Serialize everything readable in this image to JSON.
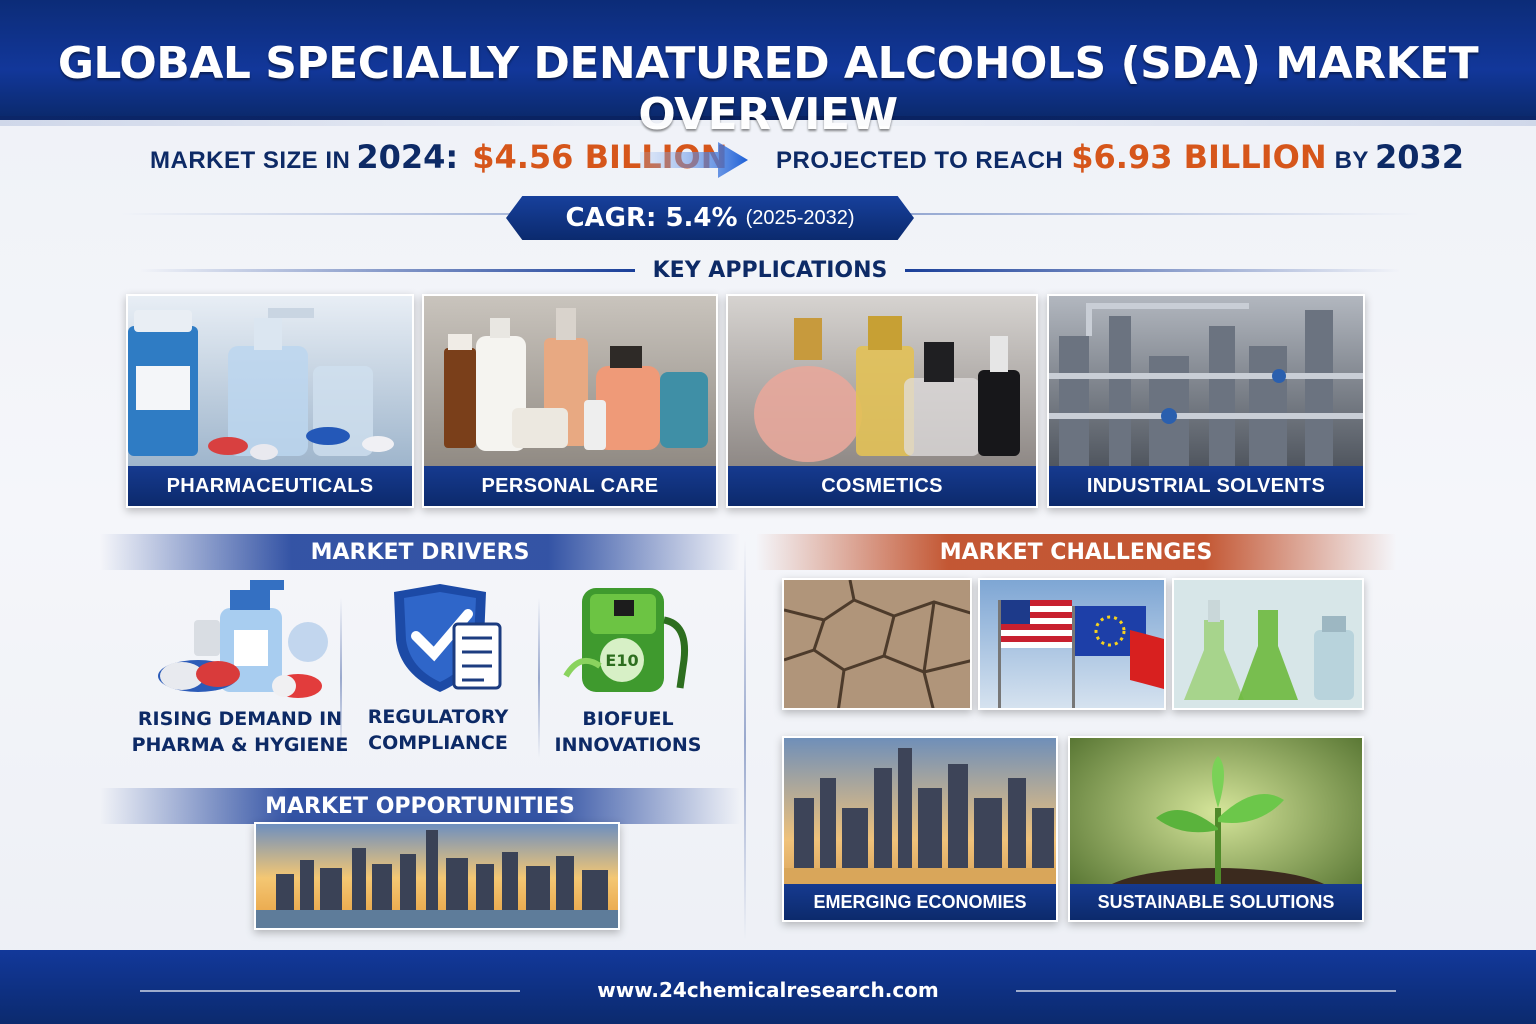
{
  "header": {
    "title": "GLOBAL SPECIALLY DENATURED ALCOHOLS (SDA) MARKET OVERVIEW"
  },
  "market_size": {
    "prefix": "MARKET SIZE IN",
    "year": "2024:",
    "value": "$4.56 BILLION"
  },
  "projection": {
    "prefix": "PROJECTED TO REACH",
    "value": "$6.93 BILLION",
    "by": "BY",
    "year": "2032"
  },
  "cagr": {
    "label": "CAGR: 5.4%",
    "period": "(2025-2032)"
  },
  "key_applications": {
    "title": "KEY APPLICATIONS",
    "items": [
      {
        "label": "PHARMACEUTICALS",
        "icon": "pharma-bottles-pills-icon"
      },
      {
        "label": "PERSONAL CARE",
        "icon": "care-bottles-icon"
      },
      {
        "label": "COSMETICS",
        "icon": "perfume-bottles-icon"
      },
      {
        "label": "INDUSTRIAL SOLVENTS",
        "icon": "industrial-pipes-icon"
      }
    ]
  },
  "drivers": {
    "title": "MARKET DRIVERS",
    "items": [
      {
        "line1": "RISING DEMAND IN",
        "line2": "PHARMA & HYGIENE",
        "icon": "pills-sanitizer-icon"
      },
      {
        "line1": "REGULATORY",
        "line2": "COMPLIANCE",
        "icon": "shield-checklist-icon"
      },
      {
        "line1": "BIOFUEL",
        "line2": "INNOVATIONS",
        "icon": "fuel-pump-icon",
        "badge": "E10"
      }
    ]
  },
  "opportunities": {
    "title": "MARKET OPPORTUNITIES"
  },
  "challenges": {
    "title": "MARKET CHALLENGES",
    "tiles": [
      {
        "icon": "cracked-earth-icon"
      },
      {
        "icon": "flags-icon"
      },
      {
        "icon": "lab-flasks-icon"
      }
    ],
    "bottom_tiles": [
      {
        "label": "EMERGING ECONOMIES",
        "icon": "city-skyline-icon"
      },
      {
        "label": "SUSTAINABLE SOLUTIONS",
        "icon": "seedling-icon"
      }
    ]
  },
  "footer": {
    "url": "www.24chemicalresearch.com"
  },
  "colors": {
    "navy": "#0d2a66",
    "banner_blue": "#12379a",
    "accent_orange": "#d6561b",
    "challenge_red": "#be461e"
  }
}
